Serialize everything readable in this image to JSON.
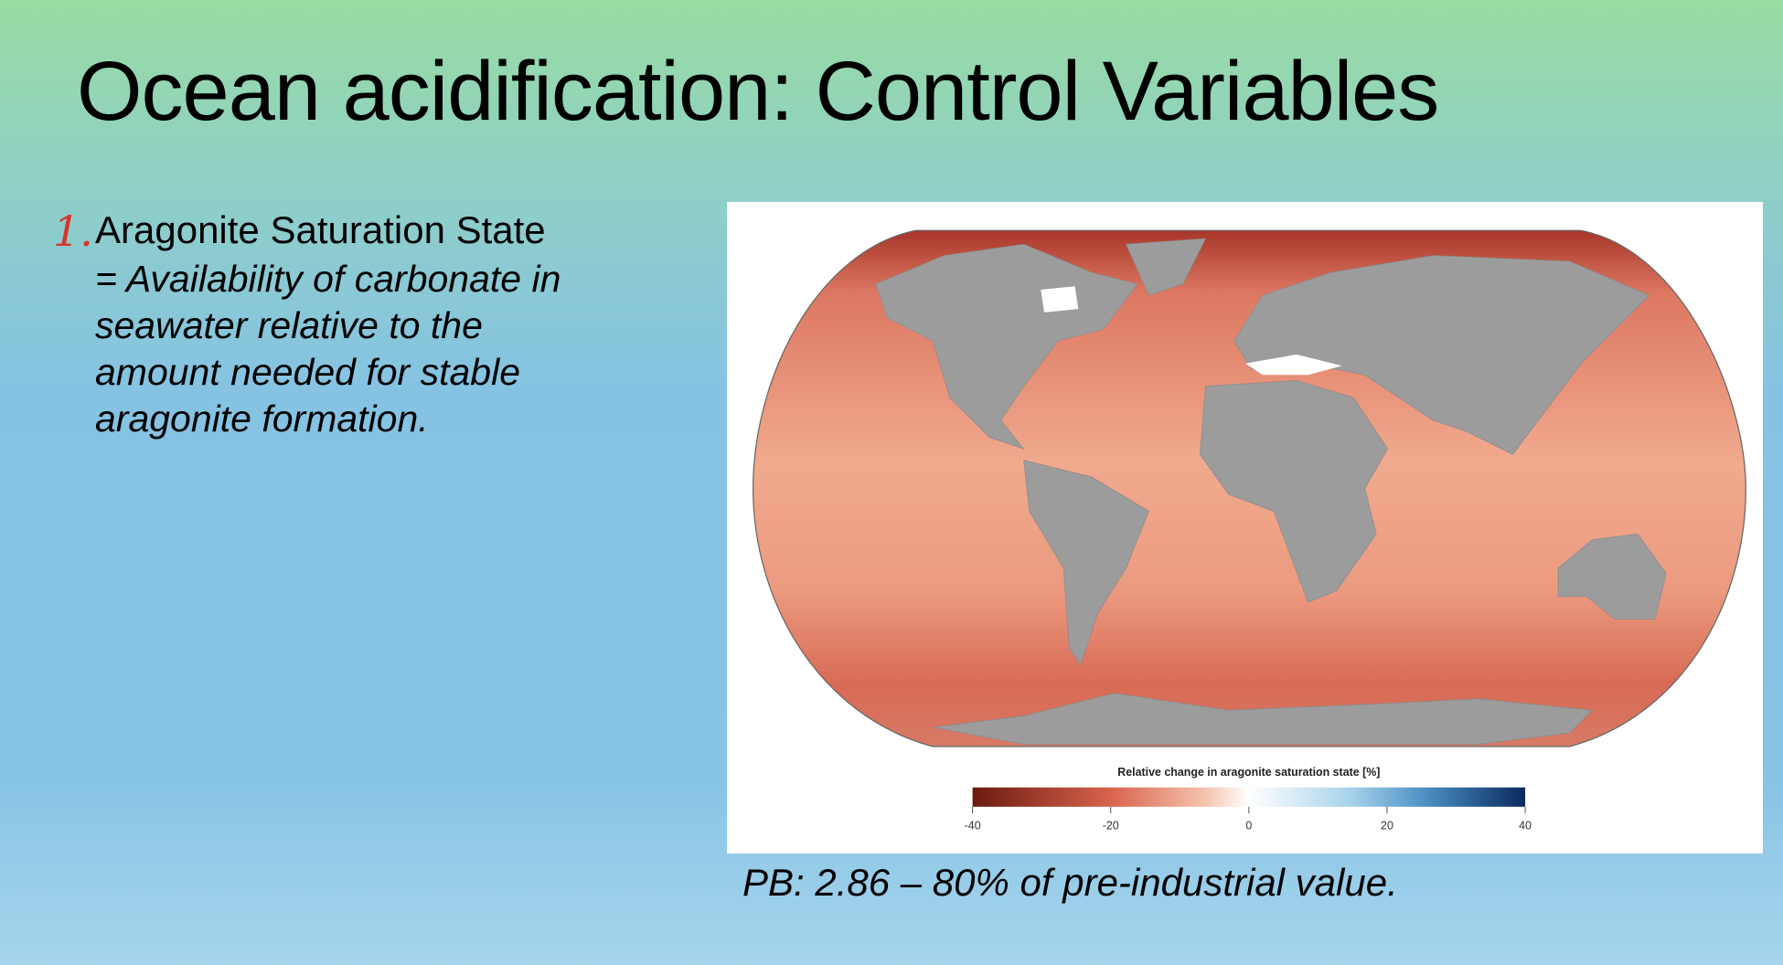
{
  "slide": {
    "title": "Ocean acidification: Control Variables",
    "item": {
      "number": "1.",
      "heading": "Aragonite Saturation State",
      "description_lines": [
        "= Availability of carbonate in",
        "seawater relative to the",
        "amount needed for stable",
        "aragonite formation."
      ]
    },
    "figure": {
      "colorbar_label": "Relative change in aragonite saturation state [%]",
      "colorbar_ticks": [
        -40,
        -20,
        0,
        20,
        40
      ]
    },
    "caption": "PB: 2.86 – 80% of pre-industrial value."
  }
}
